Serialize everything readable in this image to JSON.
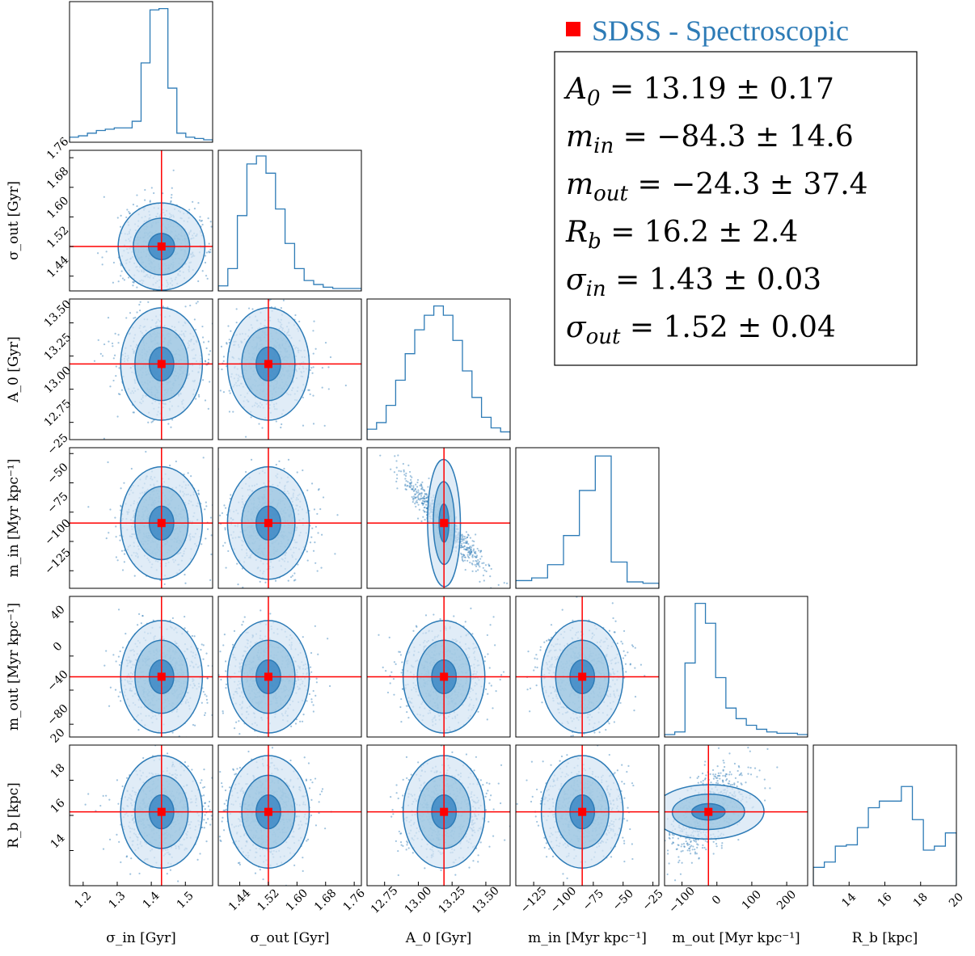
{
  "colors": {
    "sample": "#2d7bb6",
    "fill_light": "#d6e6f4",
    "fill_mid": "#9ac4e0",
    "fill_dark": "#2f7fc0",
    "marker": "#ff0000",
    "axes": "#000000"
  },
  "legend": {
    "marker_icon": "red-square",
    "label": "SDSS - Spectroscopic"
  },
  "results": [
    {
      "sym": "A",
      "sub": "0",
      "val": "13.19",
      "err": "0.17"
    },
    {
      "sym": "m",
      "sub": "in",
      "val": "−84.3",
      "err": "14.6"
    },
    {
      "sym": "m",
      "sub": "out",
      "val": "−24.3",
      "err": "37.4"
    },
    {
      "sym": "R",
      "sub": "b",
      "val": "16.2",
      "err": "2.4"
    },
    {
      "sym": "σ",
      "sub": "in",
      "val": "1.43",
      "err": "0.03"
    },
    {
      "sym": "σ",
      "sub": "out",
      "val": "1.52",
      "err": "0.04"
    }
  ],
  "chart_data": {
    "type": "corner",
    "parameters": [
      {
        "name": "σ_in",
        "xlabel": "σ_in [Gyr]",
        "ylabel": "",
        "range": [
          1.16,
          1.58
        ],
        "ticks": [
          1.2,
          1.3,
          1.4,
          1.5
        ],
        "tick_labels": [
          "1.2",
          "1.3",
          "1.4",
          "1.5"
        ],
        "truth": 1.43,
        "hist": [
          0.02,
          0.03,
          0.05,
          0.07,
          0.08,
          0.09,
          0.09,
          0.14,
          0.58,
          0.98,
          0.99,
          0.39,
          0.05,
          0.02,
          0.01,
          0.0
        ]
      },
      {
        "name": "σ_out",
        "xlabel": "σ_out [Gyr]",
        "ylabel": "σ_out [Gyr]",
        "range": [
          1.38,
          1.78
        ],
        "ticks": [
          1.44,
          1.52,
          1.6,
          1.68,
          1.76
        ],
        "tick_labels": [
          "1.44",
          "1.52",
          "1.60",
          "1.68",
          "1.76"
        ],
        "truth": 1.52,
        "hist": [
          0.02,
          0.15,
          0.55,
          0.94,
          1.0,
          0.87,
          0.6,
          0.34,
          0.15,
          0.06,
          0.03,
          0.01,
          0.0,
          0.0,
          0.0
        ]
      },
      {
        "name": "A_0",
        "xlabel": "A_0 [Gyr]",
        "ylabel": "A_0 [Gyr]",
        "range": [
          12.62,
          13.68
        ],
        "ticks": [
          12.75,
          13.0,
          13.25,
          13.5
        ],
        "tick_labels": [
          "12.75",
          "13.00",
          "13.25",
          "13.50"
        ],
        "truth": 13.19,
        "hist": [
          0.06,
          0.11,
          0.24,
          0.43,
          0.63,
          0.81,
          0.92,
          0.99,
          0.92,
          0.73,
          0.5,
          0.3,
          0.15,
          0.07,
          0.04
        ]
      },
      {
        "name": "m_in",
        "xlabel": "m_in [Myr kpc⁻¹]",
        "ylabel": "m_in [Myr kpc⁻¹]",
        "range": [
          -140,
          -20
        ],
        "ticks": [
          -125,
          -100,
          -75,
          -50,
          -25
        ],
        "tick_labels": [
          "−125",
          "−100",
          "−75",
          "−50",
          "−25"
        ],
        "truth": -84.3,
        "hist": [
          0.04,
          0.06,
          0.16,
          0.38,
          0.72,
          0.98,
          0.18,
          0.03,
          0.02
        ]
      },
      {
        "name": "m_out",
        "xlabel": "m_out [Myr kpc⁻¹]",
        "ylabel": "m_out [Myr kpc⁻¹]",
        "range": [
          -150,
          260
        ],
        "ticks": [
          -100,
          0,
          100,
          200
        ],
        "tick_labels": [
          "−100",
          "0",
          "100",
          "200"
        ],
        "truth": -24.3,
        "hist": [
          0.0,
          0.02,
          0.54,
          0.99,
          0.84,
          0.43,
          0.2,
          0.12,
          0.07,
          0.04,
          0.02,
          0.01,
          0.01,
          0.0
        ]
      },
      {
        "name": "R_b",
        "xlabel": "R_b [kpc]",
        "ylabel": "R_b [kpc]",
        "range": [
          12.0,
          20.0
        ],
        "ticks": [
          14,
          16,
          18,
          20
        ],
        "tick_labels": [
          "14",
          "16",
          "18",
          "20"
        ],
        "truth": 16.2,
        "hist": [
          0.12,
          0.16,
          0.28,
          0.29,
          0.42,
          0.57,
          0.62,
          0.62,
          0.73,
          0.48,
          0.25,
          0.28,
          0.38
        ]
      }
    ],
    "y_ranges": {
      "σ_out": [
        1.4,
        1.78
      ],
      "A_0": [
        12.62,
        13.68
      ],
      "m_in": [
        -140,
        -20
      ],
      "m_out": [
        -95,
        70
      ],
      "R_b": [
        12.0,
        20.0
      ]
    },
    "y_ticks": {
      "σ_out": {
        "ticks": [
          1.44,
          1.52,
          1.6,
          1.68,
          1.76
        ],
        "labels": [
          "1.44",
          "1.52",
          "1.60",
          "1.68",
          "1.76"
        ]
      },
      "A_0": {
        "ticks": [
          12.75,
          13.0,
          13.25,
          13.5
        ],
        "labels": [
          "12.75",
          "13.00",
          "13.25",
          "13.50"
        ]
      },
      "m_in": {
        "ticks": [
          -125,
          -100,
          -75,
          -50,
          -25
        ],
        "labels": [
          "−125",
          "−100",
          "−75",
          "−50",
          "−25"
        ]
      },
      "m_out": {
        "ticks": [
          -80,
          -40,
          0,
          40
        ],
        "labels": [
          "−80",
          "−40",
          "0",
          "40"
        ]
      },
      "R_b": {
        "ticks": [
          14,
          16,
          18,
          20
        ],
        "labels": [
          "14",
          "16",
          "18",
          "20"
        ]
      }
    },
    "correlations": {
      "A_0|m_in": -0.93,
      "m_out|R_b": 0.6,
      "σ_in|σ_out": 0.1
    },
    "grid": false,
    "legend_placement": "top-right"
  }
}
